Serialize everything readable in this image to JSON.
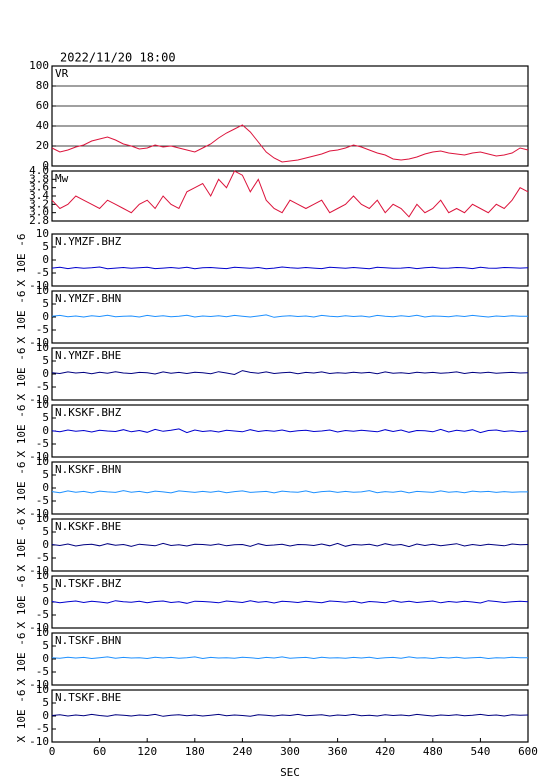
{
  "chart_data": {
    "type": "multi-panel",
    "title": "2022/11/20 18:00",
    "xlabel": "SEC",
    "xlim": [
      0,
      600
    ],
    "xticks": [
      0,
      60,
      120,
      180,
      240,
      300,
      360,
      420,
      480,
      540,
      600
    ],
    "x": [
      0,
      10,
      20,
      30,
      40,
      50,
      60,
      70,
      80,
      90,
      100,
      110,
      120,
      130,
      140,
      150,
      160,
      170,
      180,
      190,
      200,
      210,
      220,
      230,
      240,
      250,
      260,
      270,
      280,
      290,
      300,
      310,
      320,
      330,
      340,
      350,
      360,
      370,
      380,
      390,
      400,
      410,
      420,
      430,
      440,
      450,
      460,
      470,
      480,
      490,
      500,
      510,
      520,
      530,
      540,
      550,
      560,
      570,
      580,
      590,
      600
    ],
    "panels": [
      {
        "type": "line",
        "label": "VR",
        "color": "#dc143c",
        "ylim": [
          0,
          100
        ],
        "yticks": [
          0,
          20,
          40,
          60,
          80,
          100
        ],
        "grid": true,
        "values": [
          18,
          14,
          16,
          19,
          21,
          25,
          27,
          29,
          26,
          22,
          20,
          17,
          18,
          21,
          19,
          20,
          18,
          16,
          14,
          18,
          22,
          28,
          33,
          37,
          41,
          34,
          24,
          14,
          8,
          4,
          5,
          6,
          8,
          10,
          12,
          15,
          16,
          18,
          21,
          19,
          16,
          13,
          11,
          7,
          6,
          7,
          9,
          12,
          14,
          15,
          13,
          12,
          11,
          13,
          14,
          12,
          10,
          11,
          13,
          18,
          16
        ]
      },
      {
        "type": "line",
        "label": "Mw",
        "color": "#dc143c",
        "ylim": [
          2.8,
          4.0
        ],
        "yticks": [
          {
            "value": 4,
            "label": "4.0"
          },
          3.8,
          3.6,
          3.4,
          3.2,
          {
            "value": 3,
            "label": "3.0"
          },
          2.8
        ],
        "grid": false,
        "values": [
          3.3,
          3.1,
          3.2,
          3.4,
          3.3,
          3.2,
          3.1,
          3.3,
          3.2,
          3.1,
          3.0,
          3.2,
          3.3,
          3.1,
          3.4,
          3.2,
          3.1,
          3.5,
          3.6,
          3.7,
          3.4,
          3.8,
          3.6,
          4.0,
          3.9,
          3.5,
          3.8,
          3.3,
          3.1,
          3.0,
          3.3,
          3.2,
          3.1,
          3.2,
          3.3,
          3.0,
          3.1,
          3.2,
          3.4,
          3.2,
          3.1,
          3.3,
          3.0,
          3.2,
          3.1,
          2.9,
          3.2,
          3.0,
          3.1,
          3.3,
          3.0,
          3.1,
          3.0,
          3.2,
          3.1,
          3.0,
          3.2,
          3.1,
          3.3,
          3.6,
          3.5
        ]
      },
      {
        "type": "line",
        "label": "N.YMZF.BHZ",
        "ylabel": "X 10E -6",
        "color": "#0000cd",
        "ylim": [
          -10,
          10
        ],
        "yticks": [
          10,
          5,
          0,
          -5,
          -10
        ],
        "grid": false,
        "values": [
          -3.1,
          -2.8,
          -3.3,
          -2.9,
          -3.2,
          -3.0,
          -2.7,
          -3.4,
          -3.1,
          -2.9,
          -3.2,
          -3.0,
          -2.8,
          -3.3,
          -3.1,
          -2.9,
          -3.2,
          -2.8,
          -3.4,
          -3.0,
          -2.9,
          -3.1,
          -3.3,
          -2.8,
          -3.0,
          -3.2,
          -2.9,
          -3.4,
          -3.1,
          -2.7,
          -3.0,
          -3.2,
          -2.9,
          -3.1,
          -3.3,
          -2.8,
          -3.0,
          -3.2,
          -2.9,
          -3.1,
          -3.4,
          -2.8,
          -3.0,
          -3.2,
          -3.1,
          -2.9,
          -3.3,
          -3.0,
          -2.8,
          -3.2,
          -3.1,
          -2.9,
          -3.0,
          -3.3,
          -2.8,
          -3.1,
          -3.2,
          -2.9,
          -3.0,
          -3.1,
          -3.0
        ]
      },
      {
        "type": "line",
        "label": "N.YMZF.BHN",
        "ylabel": "X 10E -6",
        "color": "#1e90ff",
        "ylim": [
          -10,
          10
        ],
        "yticks": [
          10,
          5,
          0,
          -5,
          -10
        ],
        "grid": false,
        "values": [
          0.3,
          0.6,
          0.1,
          0.4,
          0.0,
          0.5,
          0.2,
          0.7,
          0.1,
          0.3,
          0.4,
          0.0,
          0.6,
          0.2,
          0.5,
          0.1,
          0.3,
          0.7,
          0.0,
          0.4,
          0.2,
          0.5,
          0.1,
          0.6,
          0.3,
          0.0,
          0.4,
          0.8,
          -0.1,
          0.3,
          0.5,
          0.2,
          0.4,
          0.0,
          0.6,
          0.3,
          0.1,
          0.5,
          0.2,
          0.4,
          0.0,
          0.6,
          0.3,
          0.1,
          0.5,
          0.2,
          0.7,
          0.0,
          0.4,
          0.3,
          0.1,
          0.5,
          0.2,
          0.6,
          0.3,
          0.0,
          0.4,
          0.2,
          0.5,
          0.3,
          0.3
        ]
      },
      {
        "type": "line",
        "label": "N.YMZF.BHE",
        "ylabel": "X 10E -6",
        "color": "#000080",
        "ylim": [
          -10,
          10
        ],
        "yticks": [
          10,
          5,
          0,
          -5,
          -10
        ],
        "grid": false,
        "values": [
          0.5,
          0.2,
          0.8,
          0.4,
          0.6,
          0.1,
          0.7,
          0.3,
          0.9,
          0.4,
          0.2,
          0.6,
          0.5,
          0.0,
          0.8,
          0.3,
          0.6,
          0.2,
          0.7,
          0.5,
          0.1,
          0.9,
          0.4,
          -0.2,
          1.3,
          0.6,
          0.3,
          0.8,
          0.2,
          0.5,
          0.7,
          0.1,
          0.6,
          0.4,
          0.8,
          0.2,
          0.5,
          0.3,
          0.7,
          0.4,
          0.6,
          0.1,
          0.8,
          0.3,
          0.5,
          0.2,
          0.7,
          0.4,
          0.6,
          0.3,
          0.5,
          0.8,
          0.2,
          0.6,
          0.4,
          0.7,
          0.3,
          0.5,
          0.6,
          0.4,
          0.5
        ]
      },
      {
        "type": "line",
        "label": "N.KSKF.BHZ",
        "ylabel": "X 10E -6",
        "color": "#0000cd",
        "ylim": [
          -10,
          10
        ],
        "yticks": [
          10,
          5,
          0,
          -5,
          -10
        ],
        "grid": false,
        "values": [
          0.1,
          -0.3,
          0.4,
          -0.1,
          0.2,
          -0.4,
          0.3,
          0.0,
          -0.2,
          0.5,
          -0.3,
          0.2,
          -0.5,
          0.6,
          -0.1,
          0.3,
          0.8,
          -0.6,
          0.4,
          -0.2,
          0.1,
          -0.4,
          0.3,
          0.0,
          -0.3,
          0.5,
          -0.2,
          0.2,
          -0.1,
          0.4,
          -0.3,
          0.1,
          0.3,
          -0.2,
          0.0,
          0.4,
          -0.4,
          0.2,
          -0.1,
          0.3,
          0.0,
          -0.3,
          0.5,
          -0.2,
          0.4,
          -0.5,
          0.2,
          0.1,
          -0.3,
          0.6,
          -0.4,
          0.3,
          -0.1,
          0.5,
          -0.6,
          0.2,
          0.4,
          -0.2,
          0.1,
          -0.3,
          0.0
        ]
      },
      {
        "type": "line",
        "label": "N.KSKF.BHN",
        "ylabel": "X 10E -6",
        "color": "#1e90ff",
        "ylim": [
          -10,
          10
        ],
        "yticks": [
          10,
          5,
          0,
          -5,
          -10
        ],
        "grid": false,
        "values": [
          -1.4,
          -1.8,
          -1.1,
          -1.6,
          -1.3,
          -1.9,
          -1.2,
          -1.5,
          -1.7,
          -1.0,
          -1.6,
          -1.3,
          -1.8,
          -1.2,
          -1.5,
          -1.9,
          -1.1,
          -1.4,
          -1.7,
          -1.3,
          -1.6,
          -1.2,
          -1.8,
          -1.4,
          -1.1,
          -1.7,
          -1.5,
          -1.3,
          -1.9,
          -1.2,
          -1.5,
          -1.6,
          -1.1,
          -1.8,
          -1.4,
          -1.2,
          -1.7,
          -1.3,
          -1.6,
          -1.5,
          -1.0,
          -1.8,
          -1.4,
          -1.6,
          -1.2,
          -1.9,
          -1.3,
          -1.5,
          -1.7,
          -1.1,
          -1.6,
          -1.4,
          -1.8,
          -1.2,
          -1.5,
          -1.3,
          -1.7,
          -1.4,
          -1.6,
          -1.5,
          -1.5
        ]
      },
      {
        "type": "line",
        "label": "N.KSKF.BHE",
        "ylabel": "X 10E -6",
        "color": "#000080",
        "ylim": [
          -10,
          10
        ],
        "yticks": [
          10,
          5,
          0,
          -5,
          -10
        ],
        "grid": false,
        "values": [
          0.2,
          -0.2,
          0.4,
          -0.4,
          0.1,
          0.3,
          -0.3,
          0.5,
          -0.1,
          0.2,
          -0.5,
          0.3,
          0.0,
          -0.3,
          0.6,
          -0.2,
          0.1,
          -0.4,
          0.3,
          0.2,
          -0.1,
          0.4,
          -0.3,
          0.1,
          0.2,
          -0.5,
          0.5,
          -0.2,
          0.0,
          0.3,
          -0.4,
          0.2,
          0.1,
          -0.2,
          0.4,
          -0.3,
          0.6,
          -0.5,
          0.2,
          0.0,
          0.3,
          -0.4,
          0.5,
          -0.1,
          0.2,
          -0.6,
          0.4,
          -0.2,
          0.3,
          -0.3,
          0.1,
          0.5,
          -0.4,
          0.2,
          -0.2,
          0.3,
          0.0,
          -0.3,
          0.4,
          0.1,
          0.2
        ]
      },
      {
        "type": "line",
        "label": "N.TSKF.BHZ",
        "ylabel": "X 10E -6",
        "color": "#0000cd",
        "ylim": [
          -10,
          10
        ],
        "yticks": [
          10,
          5,
          0,
          -5,
          -10
        ],
        "grid": false,
        "values": [
          0.2,
          -0.3,
          0.1,
          0.4,
          -0.2,
          0.3,
          0.0,
          -0.4,
          0.5,
          0.1,
          -0.1,
          0.3,
          -0.3,
          0.2,
          0.4,
          -0.2,
          0.1,
          -0.5,
          0.3,
          0.2,
          0.0,
          -0.3,
          0.4,
          0.1,
          -0.2,
          0.5,
          -0.1,
          0.2,
          -0.4,
          0.3,
          0.1,
          -0.2,
          0.3,
          0.0,
          -0.3,
          0.4,
          0.2,
          -0.1,
          0.3,
          -0.4,
          0.2,
          0.0,
          -0.3,
          0.5,
          -0.1,
          0.3,
          -0.2,
          0.1,
          0.4,
          -0.3,
          0.2,
          -0.1,
          0.3,
          0.0,
          -0.4,
          0.5,
          0.2,
          -0.2,
          0.1,
          0.3,
          0.1
        ]
      },
      {
        "type": "line",
        "label": "N.TSKF.BHN",
        "ylabel": "X 10E -6",
        "color": "#1e90ff",
        "ylim": [
          -10,
          10
        ],
        "yticks": [
          10,
          5,
          0,
          -5,
          -10
        ],
        "grid": false,
        "values": [
          0.5,
          0.3,
          0.7,
          0.4,
          0.6,
          0.2,
          0.5,
          0.8,
          0.3,
          0.6,
          0.4,
          0.5,
          0.2,
          0.7,
          0.4,
          0.6,
          0.3,
          0.5,
          0.8,
          0.2,
          0.6,
          0.4,
          0.5,
          0.3,
          0.7,
          0.5,
          0.2,
          0.6,
          0.4,
          0.8,
          0.3,
          0.5,
          0.6,
          0.2,
          0.7,
          0.4,
          0.5,
          0.3,
          0.6,
          0.4,
          0.7,
          0.2,
          0.5,
          0.6,
          0.3,
          0.8,
          0.4,
          0.5,
          0.2,
          0.6,
          0.4,
          0.7,
          0.3,
          0.5,
          0.6,
          0.2,
          0.5,
          0.4,
          0.7,
          0.5,
          0.5
        ]
      },
      {
        "type": "line",
        "label": "N.TSKF.BHE",
        "ylabel": "X 10E -6",
        "color": "#000080",
        "ylim": [
          -10,
          10
        ],
        "yticks": [
          10,
          5,
          0,
          -5,
          -10
        ],
        "grid": false,
        "values": [
          0.2,
          0.5,
          0.0,
          0.4,
          0.1,
          0.6,
          0.2,
          -0.1,
          0.5,
          0.3,
          0.0,
          0.4,
          0.2,
          0.6,
          -0.1,
          0.3,
          0.5,
          0.1,
          0.4,
          0.0,
          0.3,
          0.6,
          0.1,
          0.4,
          0.2,
          -0.1,
          0.5,
          0.3,
          0.0,
          0.4,
          0.2,
          0.6,
          0.1,
          0.3,
          0.5,
          0.0,
          0.4,
          0.2,
          0.6,
          0.1,
          0.3,
          0.0,
          0.5,
          0.2,
          0.4,
          0.1,
          0.6,
          0.3,
          0.0,
          0.4,
          0.2,
          0.5,
          0.1,
          0.3,
          0.6,
          0.2,
          0.4,
          0.0,
          0.5,
          0.3,
          0.4
        ]
      }
    ]
  }
}
